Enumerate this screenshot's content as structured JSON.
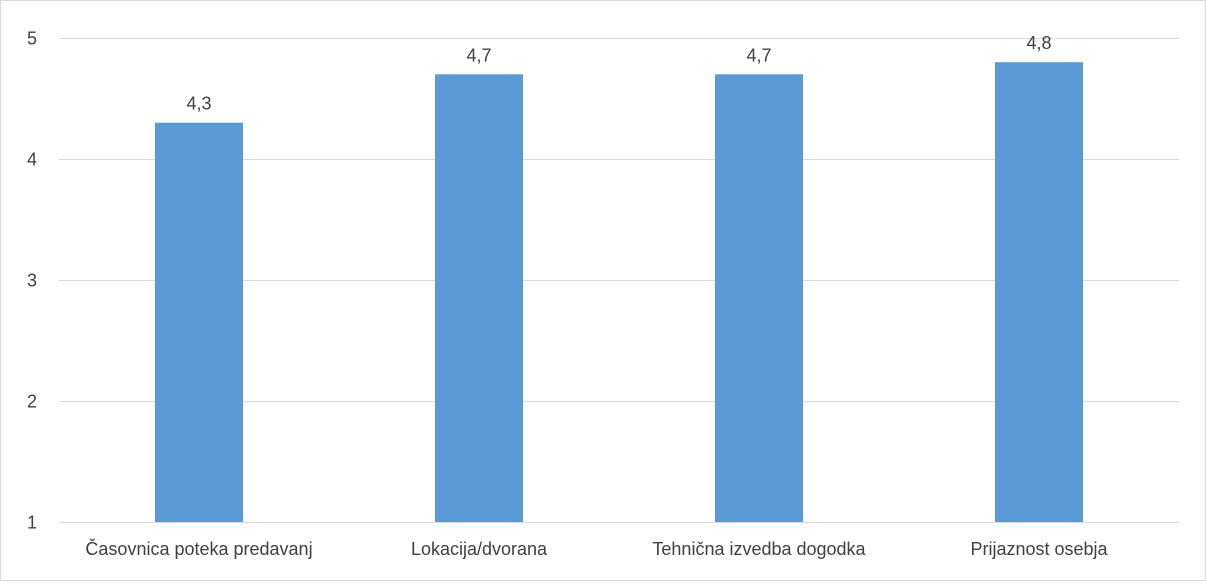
{
  "chart_data": {
    "type": "bar",
    "title": "",
    "xlabel": "",
    "ylabel": "",
    "categories": [
      "Časovnica poteka predavanj",
      "Lokacija/dvorana",
      "Tehnična izvedba dogodka",
      "Prijaznost osebja"
    ],
    "values": [
      4.3,
      4.7,
      4.7,
      4.8
    ],
    "data_labels": [
      "4,3",
      "4,7",
      "4,7",
      "4,8"
    ],
    "ylim": [
      1,
      5
    ],
    "yticks": [
      1,
      2,
      3,
      4,
      5
    ],
    "ytick_labels": [
      "1",
      "2",
      "3",
      "4",
      "5"
    ],
    "grid": true,
    "legend": "none",
    "bar_color": "#5b9bd5",
    "grid_color": "#d9d9d9",
    "text_color": "#404040"
  }
}
